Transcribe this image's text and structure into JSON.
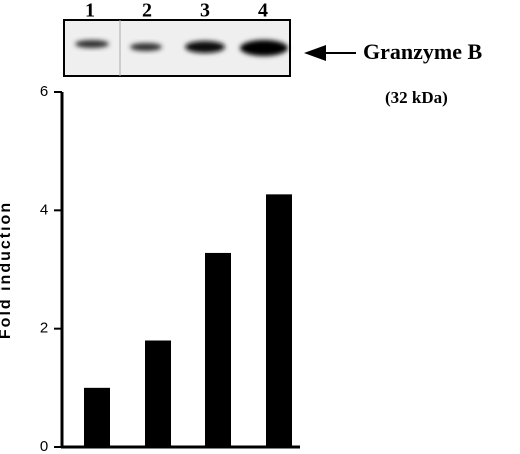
{
  "chart_data": {
    "type": "bar",
    "categories": [
      "1",
      "2",
      "3",
      "4"
    ],
    "values": [
      1.0,
      1.8,
      3.28,
      4.27
    ],
    "color": "#000000",
    "ylim": [
      0,
      6
    ],
    "yticks": [
      0,
      2,
      4,
      6
    ],
    "ylabel": "Fold induction",
    "annotations": [
      "Granzyme B",
      "(32 kDa)"
    ]
  }
}
